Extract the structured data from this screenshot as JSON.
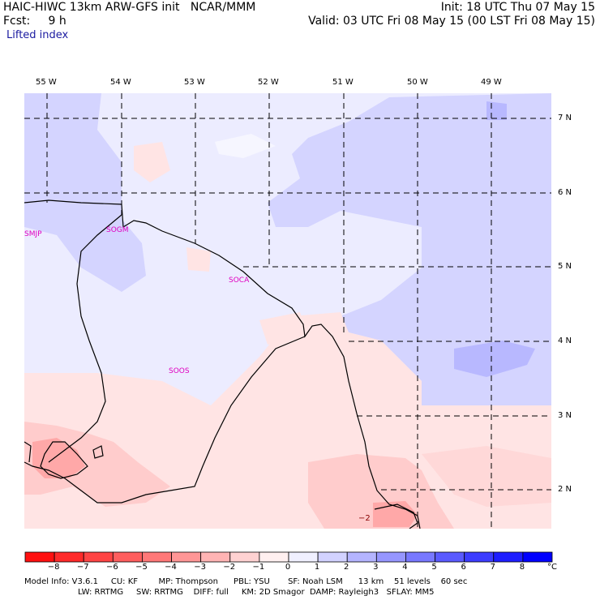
{
  "header": {
    "left1": "HAIC-HIWC 13km ARW-GFS init   NCAR/MMM",
    "left2": "Fcst:     9 h",
    "right1": "Init: 18 UTC Thu 07 May 15",
    "right2": "Valid: 03 UTC Fri 08 May 15 (00 LST Fri 08 May 15)",
    "field": "Lifted index"
  },
  "longitude_labels": [
    "55 W",
    "54 W",
    "53 W",
    "52 W",
    "51 W",
    "50 W",
    "49 W"
  ],
  "latitude_labels": [
    "7 N",
    "6 N",
    "5 N",
    "4 N",
    "3 N",
    "2 N"
  ],
  "stations": [
    "SMJP",
    "SOGM",
    "SOCA",
    "SOOS"
  ],
  "contour_label": "−2",
  "colorbar": {
    "ticks": [
      "−8",
      "−7",
      "−6",
      "−5",
      "−4",
      "−3",
      "−2",
      "−1",
      "0",
      "1",
      "2",
      "3",
      "4",
      "5",
      "6",
      "7",
      "8"
    ],
    "unit": "°C",
    "colors": [
      "#ff1010",
      "#ff2a2a",
      "#ff4444",
      "#ff5e5e",
      "#ff7878",
      "#ff9696",
      "#ffb4b4",
      "#ffd2d2",
      "#fff0f0",
      "#f0f0ff",
      "#d2d2ff",
      "#b4b4ff",
      "#9696ff",
      "#7878ff",
      "#5a5aff",
      "#3c3cff",
      "#1e1eff",
      "#0000ff"
    ]
  },
  "footer": {
    "line1": "Model Info: V3.6.1     CU: KF        MP: Thompson      PBL: YSU       SF: Noah LSM      13 km    51 levels    60 sec",
    "line2": "LW: RRTMG     SW: RRTMG    DIFF: full     KM: 2D Smagor  DAMP: Rayleigh3   SFLAY: MM5"
  }
}
